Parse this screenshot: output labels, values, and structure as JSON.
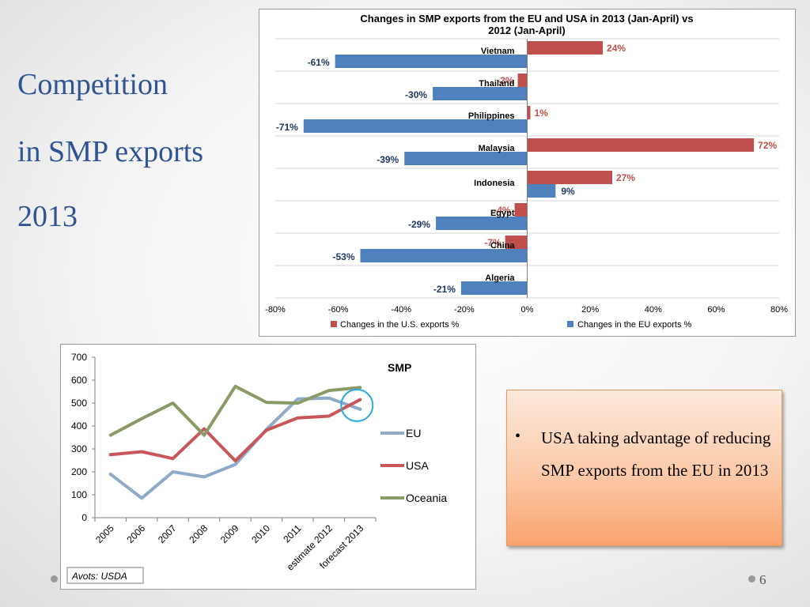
{
  "slide": {
    "title_lines": [
      "Competition",
      "in SMP exports",
      "2013"
    ],
    "bullet": "USA taking advantage of reducing SMP exports from the EU in 2013",
    "slide_number": "6"
  },
  "chart_data": [
    {
      "type": "bar",
      "orientation": "horizontal",
      "title": "Changes in SMP exports from the EU and USA in 2013 (Jan-April) vs 2012 (Jan-April)",
      "categories": [
        "Vietnam",
        "Thailand",
        "Philippines",
        "Malaysia",
        "Indonesia",
        "Egypt",
        "China",
        "Algeria"
      ],
      "series": [
        {
          "name": "Changes in the U.S. exports %",
          "color": "#c0504d",
          "values": [
            24,
            -3,
            1,
            72,
            27,
            -4,
            -7,
            null
          ],
          "labels": [
            "24%",
            "-3%",
            "1%",
            "72%",
            "27%",
            "-4%",
            "-7%",
            ""
          ]
        },
        {
          "name": "Changes in the EU exports %",
          "color": "#4f81bd",
          "values": [
            -61,
            -30,
            -71,
            -39,
            9,
            -29,
            -53,
            -21
          ],
          "labels": [
            "-61%",
            "-30%",
            "-71%",
            "-39%",
            "9%",
            "-29%",
            "-53%",
            "-21%"
          ]
        }
      ],
      "xlim": [
        -80,
        80
      ],
      "x_ticks": [
        -80,
        -60,
        -40,
        -20,
        0,
        20,
        40,
        60,
        80
      ],
      "x_tick_labels": [
        "-80%",
        "-60%",
        "-40%",
        "-20%",
        "0%",
        "20%",
        "40%",
        "60%",
        "80%"
      ],
      "grid": true,
      "legend_position": "bottom"
    },
    {
      "type": "line",
      "title": "SMP",
      "categories": [
        "2005",
        "2006",
        "2007",
        "2008",
        "2009",
        "2010",
        "2011",
        "estimate 2012",
        "forecast 2013"
      ],
      "series": [
        {
          "name": "EU",
          "color": "#8eaac8",
          "values": [
            190,
            85,
            200,
            178,
            232,
            385,
            518,
            522,
            473
          ]
        },
        {
          "name": "USA",
          "color": "#c9575a",
          "values": [
            275,
            288,
            258,
            388,
            248,
            382,
            435,
            443,
            515
          ]
        },
        {
          "name": "Oceania",
          "color": "#8a9a66",
          "values": [
            360,
            432,
            500,
            360,
            573,
            503,
            500,
            555,
            568
          ]
        }
      ],
      "ylim": [
        0,
        700
      ],
      "y_ticks": [
        0,
        100,
        200,
        300,
        400,
        500,
        600,
        700
      ],
      "y_tick_labels": [
        "0",
        "100",
        "200",
        "300",
        "400",
        "500",
        "600",
        "700"
      ],
      "legend_position": "right",
      "grid": false,
      "highlight_color": "#27a9e1",
      "source_note": "Avots: USDA"
    }
  ]
}
